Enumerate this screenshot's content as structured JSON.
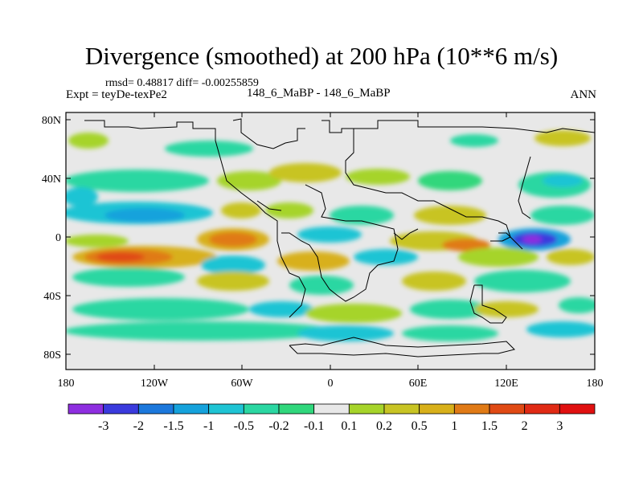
{
  "title": "Divergence (smoothed) at 200 hPa (10**6 m/s)",
  "stats": "rmsd= 0.48817 diff= -0.00255859",
  "experiment": "Expt = teyDe-texPe2",
  "cases": "148_6_MaBP - 148_6_MaBP",
  "period": "ANN",
  "lat_ticks": [
    "80N",
    "40N",
    "0",
    "40S",
    "80S"
  ],
  "lon_ticks": [
    "180",
    "120W",
    "60W",
    "0",
    "60E",
    "120E",
    "180"
  ],
  "colorbar": {
    "labels": [
      "-3",
      "-2",
      "-1.5",
      "-1",
      "-0.5",
      "-0.2",
      "-0.1",
      "0.1",
      "0.2",
      "0.5",
      "1",
      "1.5",
      "2",
      "3"
    ],
    "colors": [
      "#8e2ee0",
      "#3a3add",
      "#1c78dc",
      "#15a2dc",
      "#1fc4d4",
      "#2bd7a2",
      "#30d77c",
      "#e8e8e8",
      "#a6d42a",
      "#c8c424",
      "#d8b01a",
      "#e07a16",
      "#e04a14",
      "#e02a14",
      "#e01010"
    ]
  }
}
